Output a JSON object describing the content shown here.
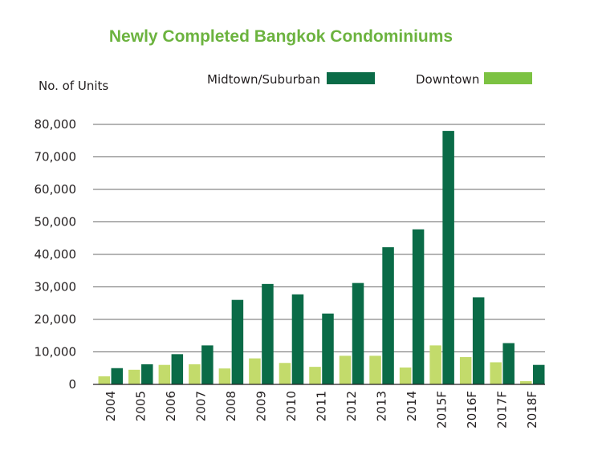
{
  "chart_data": {
    "type": "bar",
    "title": "Newly Completed Bangkok Condominiums",
    "ylabel": "No. of Units",
    "xlabel": "",
    "ylim": [
      0,
      80000
    ],
    "yticks": [
      "0",
      "10,000",
      "20,000",
      "30,000",
      "40,000",
      "50,000",
      "60,000",
      "70,000",
      "80,000"
    ],
    "grid": true,
    "legend_position": "top",
    "categories": [
      "2004",
      "2005",
      "2006",
      "2007",
      "2008",
      "2009",
      "2010",
      "2011",
      "2012",
      "2013",
      "2014",
      "2015F",
      "2016F",
      "2017F",
      "2018F"
    ],
    "series": [
      {
        "name": "Downtown",
        "color": "#c3db6b",
        "legend_color": "#7cc242",
        "values": [
          2500,
          4500,
          6000,
          6200,
          4900,
          8000,
          6600,
          5400,
          8800,
          8800,
          5200,
          12000,
          8400,
          6800,
          1000
        ]
      },
      {
        "name": "Midtown/Suburban",
        "color": "#0a6b47",
        "legend_color": "#0a6b47",
        "values": [
          5000,
          6200,
          9300,
          12000,
          26000,
          30900,
          27700,
          21800,
          31200,
          42200,
          47700,
          78000,
          26800,
          12700,
          6000
        ]
      }
    ]
  },
  "colors": {
    "title": "#6cb33f",
    "text": "#231f20",
    "grid": "#3a3a3a"
  }
}
